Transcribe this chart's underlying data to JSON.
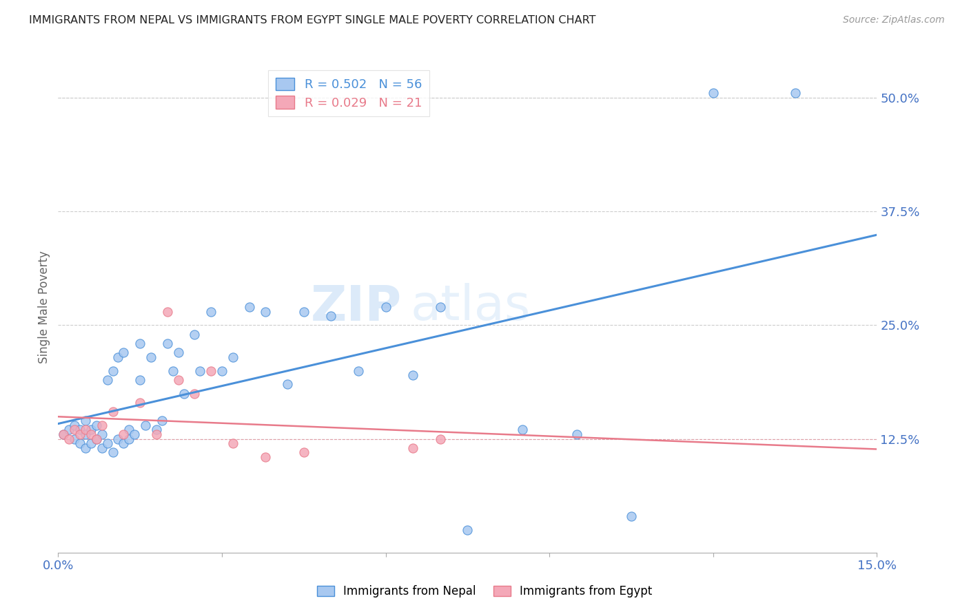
{
  "title": "IMMIGRANTS FROM NEPAL VS IMMIGRANTS FROM EGYPT SINGLE MALE POVERTY CORRELATION CHART",
  "source": "Source: ZipAtlas.com",
  "ylabel": "Single Male Poverty",
  "xlim": [
    0.0,
    0.15
  ],
  "ylim": [
    0.0,
    0.54
  ],
  "xticks": [
    0.0,
    0.03,
    0.06,
    0.09,
    0.12,
    0.15
  ],
  "xticklabels": [
    "0.0%",
    "",
    "",
    "",
    "",
    "15.0%"
  ],
  "yticks_right": [
    0.125,
    0.25,
    0.375,
    0.5
  ],
  "ytick_labels_right": [
    "12.5%",
    "25.0%",
    "37.5%",
    "50.0%"
  ],
  "nepal_color": "#a8c8f0",
  "egypt_color": "#f4a8b8",
  "nepal_line_color": "#4a90d9",
  "egypt_line_color": "#e87a8a",
  "nepal_R": 0.502,
  "nepal_N": 56,
  "egypt_R": 0.029,
  "egypt_N": 21,
  "watermark_zip": "ZIP",
  "watermark_atlas": "atlas",
  "nepal_scatter_x": [
    0.001,
    0.002,
    0.003,
    0.003,
    0.004,
    0.004,
    0.005,
    0.005,
    0.005,
    0.006,
    0.006,
    0.007,
    0.007,
    0.008,
    0.008,
    0.009,
    0.009,
    0.01,
    0.01,
    0.011,
    0.011,
    0.012,
    0.012,
    0.013,
    0.013,
    0.014,
    0.015,
    0.015,
    0.016,
    0.017,
    0.018,
    0.019,
    0.02,
    0.021,
    0.022,
    0.023,
    0.025,
    0.026,
    0.028,
    0.03,
    0.032,
    0.035,
    0.038,
    0.042,
    0.045,
    0.05,
    0.055,
    0.06,
    0.065,
    0.07,
    0.075,
    0.085,
    0.095,
    0.105,
    0.12,
    0.135
  ],
  "nepal_scatter_y": [
    0.13,
    0.135,
    0.125,
    0.14,
    0.12,
    0.135,
    0.115,
    0.13,
    0.145,
    0.12,
    0.135,
    0.125,
    0.14,
    0.115,
    0.13,
    0.12,
    0.19,
    0.11,
    0.2,
    0.125,
    0.215,
    0.12,
    0.22,
    0.125,
    0.135,
    0.13,
    0.19,
    0.23,
    0.14,
    0.215,
    0.135,
    0.145,
    0.23,
    0.2,
    0.22,
    0.175,
    0.24,
    0.2,
    0.265,
    0.2,
    0.215,
    0.27,
    0.265,
    0.185,
    0.265,
    0.26,
    0.2,
    0.27,
    0.195,
    0.27,
    0.025,
    0.135,
    0.13,
    0.04,
    0.505,
    0.505
  ],
  "egypt_scatter_x": [
    0.001,
    0.002,
    0.003,
    0.004,
    0.005,
    0.006,
    0.007,
    0.008,
    0.01,
    0.012,
    0.015,
    0.018,
    0.02,
    0.022,
    0.025,
    0.028,
    0.032,
    0.038,
    0.045,
    0.065,
    0.07
  ],
  "egypt_scatter_y": [
    0.13,
    0.125,
    0.135,
    0.13,
    0.135,
    0.13,
    0.125,
    0.14,
    0.155,
    0.13,
    0.165,
    0.13,
    0.265,
    0.19,
    0.175,
    0.2,
    0.12,
    0.105,
    0.11,
    0.115,
    0.125
  ]
}
